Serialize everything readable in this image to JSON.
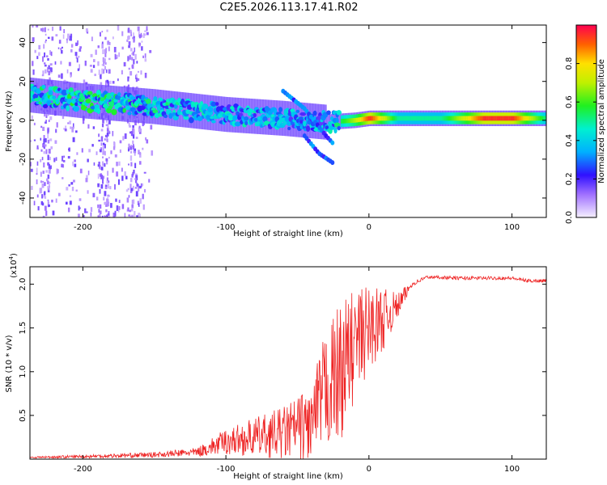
{
  "title": "C2E5.2026.113.17.41.R02",
  "colors": {
    "snr_line": "#ee2222",
    "frame": "#000000"
  },
  "chart_data": [
    {
      "type": "heatmap",
      "name": "spectrogram",
      "xlabel": "Height of straight line (km)",
      "ylabel": "Frequency (Hz)",
      "xlim": [
        -237,
        124
      ],
      "ylim": [
        -50,
        49
      ],
      "xticks": [
        -200,
        -100,
        0,
        100
      ],
      "xtick_labels": [
        "-200",
        "-100",
        "0",
        "100"
      ],
      "yticks": [
        -40,
        -20,
        0,
        20,
        40
      ],
      "ytick_labels": [
        "-40",
        "-20",
        "0",
        "20",
        "40"
      ],
      "colorbar": {
        "label": "Normalized spectral amplitude",
        "range": [
          0,
          1
        ],
        "ticks": [
          0.0,
          0.2,
          0.4,
          0.6,
          0.8
        ],
        "tick_labels": [
          "0.0",
          "0.2",
          "0.4",
          "0.6",
          "0.8"
        ]
      },
      "ridge": {
        "x": [
          -237,
          -200,
          -150,
          -100,
          -60,
          -30,
          -10,
          0,
          20,
          50,
          80,
          100,
          124
        ],
        "freq_hz": [
          13,
          10,
          7,
          3,
          1,
          -1,
          0,
          1,
          1,
          1,
          1,
          1,
          1
        ],
        "peak_amp": [
          0.5,
          0.55,
          0.5,
          0.45,
          0.45,
          0.4,
          0.7,
          0.95,
          0.5,
          0.5,
          0.95,
          0.95,
          0.5
        ]
      },
      "branches": [
        {
          "x": [
            -60,
            -45,
            -30,
            -25
          ],
          "freq_hz": [
            15,
            6,
            -8,
            -12
          ]
        },
        {
          "x": [
            -45,
            -35,
            -25
          ],
          "freq_hz": [
            -8,
            -17,
            -22
          ]
        }
      ]
    },
    {
      "type": "line",
      "name": "snr",
      "xlabel": "Height of straight line (km)",
      "ylabel": "SNR (10 * v/v)",
      "multiplier": "(x10",
      "multiplier_exp": "4",
      "multiplier_close": ")",
      "xlim": [
        -237,
        124
      ],
      "ylim": [
        0,
        2.2
      ],
      "xticks": [
        -200,
        -100,
        0,
        100
      ],
      "xtick_labels": [
        "-200",
        "-100",
        "0",
        "100"
      ],
      "yticks": [
        0.5,
        1.0,
        1.5,
        2.0
      ],
      "ytick_labels": [
        "0.5",
        "1.0",
        "1.5",
        "2.0"
      ],
      "series": [
        {
          "name": "SNR",
          "x": [
            -237,
            -200,
            -150,
            -120,
            -100,
            -80,
            -60,
            -40,
            -30,
            -20,
            -10,
            0,
            10,
            20,
            30,
            40,
            50,
            60,
            80,
            100,
            110,
            124
          ],
          "y": [
            0.02,
            0.03,
            0.05,
            0.08,
            0.2,
            0.25,
            0.3,
            0.4,
            0.8,
            1.0,
            1.3,
            1.5,
            1.6,
            1.75,
            2.0,
            2.08,
            2.08,
            2.07,
            2.07,
            2.07,
            2.04,
            2.04
          ],
          "noise": [
            0.01,
            0.02,
            0.03,
            0.05,
            0.15,
            0.22,
            0.3,
            0.45,
            0.7,
            0.8,
            0.65,
            0.5,
            0.35,
            0.15,
            0.03,
            0.02,
            0.02,
            0.02,
            0.02,
            0.02,
            0.02,
            0.02
          ]
        }
      ]
    }
  ]
}
